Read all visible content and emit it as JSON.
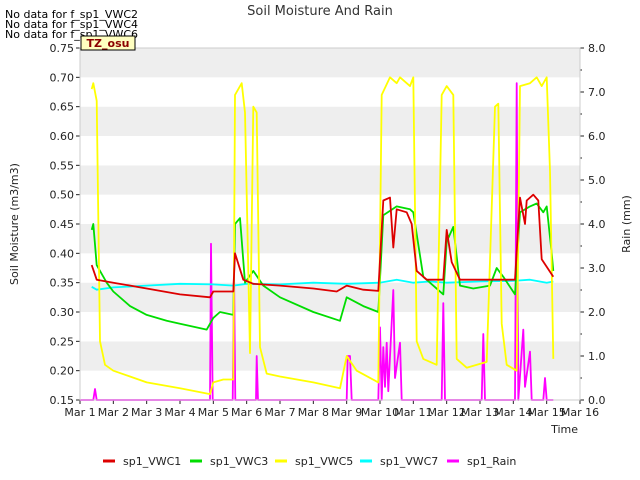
{
  "chart_data": {
    "type": "line",
    "title": "Soil Moisture And Rain",
    "xlabel": "Time",
    "ylabel": "Soil Moisture (m3/m3)",
    "y2label": "Rain (mm)",
    "x_ticks": [
      "Mar 1",
      "Mar 2",
      "Mar 3",
      "Mar 4",
      "Mar 5",
      "Mar 6",
      "Mar 7",
      "Mar 8",
      "Mar 9",
      "Mar 10",
      "Mar 11",
      "Mar 12",
      "Mar 13",
      "Mar 14",
      "Mar 15",
      "Mar 16"
    ],
    "xlim": [
      1,
      16
    ],
    "ylim": [
      0.15,
      0.75
    ],
    "y_ticks": [
      "0.15",
      "0.20",
      "0.25",
      "0.30",
      "0.35",
      "0.40",
      "0.45",
      "0.50",
      "0.55",
      "0.60",
      "0.65",
      "0.70",
      "0.75"
    ],
    "y2lim": [
      0,
      8
    ],
    "y2_ticks": [
      "0.0",
      "1.0",
      "2.0",
      "3.0",
      "4.0",
      "5.0",
      "6.0",
      "7.0",
      "8.0"
    ],
    "no_data_notes": [
      "No data for f_sp1_VWC2",
      "No data for f_sp1_VWC4",
      "No data for f_sp1_VWC6"
    ],
    "site_label": "TZ_osu",
    "legend_position": "bottom",
    "grid": "horizontal bands",
    "series": [
      {
        "name": "sp1_VWC1",
        "color": "#dd0000",
        "axis": "left",
        "points": [
          [
            1.35,
            0.38
          ],
          [
            1.5,
            0.355
          ],
          [
            2,
            0.35
          ],
          [
            3,
            0.34
          ],
          [
            4,
            0.33
          ],
          [
            4.9,
            0.325
          ],
          [
            5,
            0.335
          ],
          [
            5.6,
            0.335
          ],
          [
            5.65,
            0.4
          ],
          [
            5.9,
            0.355
          ],
          [
            6.2,
            0.348
          ],
          [
            7,
            0.345
          ],
          [
            8,
            0.34
          ],
          [
            8.7,
            0.335
          ],
          [
            9.0,
            0.345
          ],
          [
            9.5,
            0.338
          ],
          [
            9.95,
            0.336
          ],
          [
            10.1,
            0.49
          ],
          [
            10.3,
            0.495
          ],
          [
            10.4,
            0.41
          ],
          [
            10.5,
            0.475
          ],
          [
            10.8,
            0.47
          ],
          [
            10.95,
            0.45
          ],
          [
            11.1,
            0.37
          ],
          [
            11.4,
            0.355
          ],
          [
            11.9,
            0.355
          ],
          [
            12.0,
            0.44
          ],
          [
            12.15,
            0.385
          ],
          [
            12.4,
            0.355
          ],
          [
            13.0,
            0.355
          ],
          [
            13.5,
            0.355
          ],
          [
            14.05,
            0.355
          ],
          [
            14.2,
            0.495
          ],
          [
            14.35,
            0.45
          ],
          [
            14.4,
            0.49
          ],
          [
            14.6,
            0.5
          ],
          [
            14.75,
            0.49
          ],
          [
            14.85,
            0.39
          ],
          [
            15.2,
            0.36
          ]
        ]
      },
      {
        "name": "sp1_VWC3",
        "color": "#00dd00",
        "axis": "left",
        "points": [
          [
            1.35,
            0.44
          ],
          [
            1.4,
            0.45
          ],
          [
            1.5,
            0.38
          ],
          [
            1.8,
            0.35
          ],
          [
            2,
            0.335
          ],
          [
            2.5,
            0.31
          ],
          [
            3,
            0.295
          ],
          [
            3.6,
            0.285
          ],
          [
            4,
            0.28
          ],
          [
            4.8,
            0.27
          ],
          [
            5.0,
            0.29
          ],
          [
            5.2,
            0.3
          ],
          [
            5.6,
            0.295
          ],
          [
            5.65,
            0.45
          ],
          [
            5.8,
            0.46
          ],
          [
            5.95,
            0.35
          ],
          [
            6.2,
            0.37
          ],
          [
            6.5,
            0.345
          ],
          [
            7,
            0.325
          ],
          [
            8,
            0.3
          ],
          [
            8.8,
            0.285
          ],
          [
            9.0,
            0.325
          ],
          [
            9.5,
            0.31
          ],
          [
            9.95,
            0.3
          ],
          [
            10.1,
            0.465
          ],
          [
            10.5,
            0.48
          ],
          [
            10.9,
            0.475
          ],
          [
            11.0,
            0.47
          ],
          [
            11.3,
            0.36
          ],
          [
            11.9,
            0.33
          ],
          [
            12.0,
            0.42
          ],
          [
            12.2,
            0.445
          ],
          [
            12.4,
            0.345
          ],
          [
            12.8,
            0.34
          ],
          [
            13.3,
            0.345
          ],
          [
            13.5,
            0.375
          ],
          [
            13.7,
            0.36
          ],
          [
            14.05,
            0.33
          ],
          [
            14.2,
            0.47
          ],
          [
            14.5,
            0.48
          ],
          [
            14.7,
            0.485
          ],
          [
            14.9,
            0.47
          ],
          [
            15.0,
            0.48
          ],
          [
            15.15,
            0.4
          ],
          [
            15.2,
            0.37
          ]
        ]
      },
      {
        "name": "sp1_VWC5",
        "color": "#ffff00",
        "axis": "left",
        "points": [
          [
            1.35,
            0.68
          ],
          [
            1.4,
            0.69
          ],
          [
            1.5,
            0.66
          ],
          [
            1.6,
            0.25
          ],
          [
            1.75,
            0.21
          ],
          [
            2,
            0.2
          ],
          [
            2.5,
            0.19
          ],
          [
            3,
            0.18
          ],
          [
            4,
            0.17
          ],
          [
            4.9,
            0.16
          ],
          [
            5.0,
            0.18
          ],
          [
            5.3,
            0.185
          ],
          [
            5.6,
            0.185
          ],
          [
            5.65,
            0.67
          ],
          [
            5.85,
            0.69
          ],
          [
            5.95,
            0.64
          ],
          [
            6.1,
            0.23
          ],
          [
            6.2,
            0.65
          ],
          [
            6.3,
            0.64
          ],
          [
            6.4,
            0.24
          ],
          [
            6.6,
            0.195
          ],
          [
            7,
            0.19
          ],
          [
            8,
            0.18
          ],
          [
            8.8,
            0.17
          ],
          [
            9.0,
            0.225
          ],
          [
            9.3,
            0.2
          ],
          [
            9.95,
            0.18
          ],
          [
            10.05,
            0.67
          ],
          [
            10.3,
            0.7
          ],
          [
            10.5,
            0.69
          ],
          [
            10.6,
            0.7
          ],
          [
            10.9,
            0.685
          ],
          [
            11.0,
            0.7
          ],
          [
            11.1,
            0.25
          ],
          [
            11.3,
            0.22
          ],
          [
            11.7,
            0.21
          ],
          [
            11.85,
            0.67
          ],
          [
            12.0,
            0.685
          ],
          [
            12.2,
            0.67
          ],
          [
            12.3,
            0.22
          ],
          [
            12.6,
            0.205
          ],
          [
            13.2,
            0.215
          ],
          [
            13.45,
            0.65
          ],
          [
            13.55,
            0.655
          ],
          [
            13.65,
            0.28
          ],
          [
            13.8,
            0.21
          ],
          [
            14.1,
            0.2
          ],
          [
            14.2,
            0.685
          ],
          [
            14.5,
            0.69
          ],
          [
            14.7,
            0.7
          ],
          [
            14.85,
            0.685
          ],
          [
            15.0,
            0.7
          ],
          [
            15.1,
            0.54
          ],
          [
            15.2,
            0.22
          ]
        ]
      },
      {
        "name": "sp1_VWC7",
        "color": "#00ffff",
        "axis": "left",
        "points": [
          [
            1.35,
            0.343
          ],
          [
            1.5,
            0.338
          ],
          [
            2,
            0.342
          ],
          [
            3,
            0.345
          ],
          [
            4,
            0.348
          ],
          [
            5,
            0.347
          ],
          [
            5.6,
            0.345
          ],
          [
            6,
            0.348
          ],
          [
            7,
            0.347
          ],
          [
            8,
            0.35
          ],
          [
            9,
            0.348
          ],
          [
            10,
            0.35
          ],
          [
            10.5,
            0.355
          ],
          [
            11,
            0.35
          ],
          [
            11.5,
            0.352
          ],
          [
            12,
            0.35
          ],
          [
            13,
            0.352
          ],
          [
            14,
            0.353
          ],
          [
            14.5,
            0.355
          ],
          [
            15,
            0.35
          ],
          [
            15.2,
            0.352
          ]
        ]
      },
      {
        "name": "sp1_Rain",
        "color": "#ff00ff",
        "axis": "right",
        "points": [
          [
            1,
            0
          ],
          [
            1.4,
            0
          ],
          [
            1.45,
            0.25
          ],
          [
            1.5,
            0
          ],
          [
            4.9,
            0
          ],
          [
            4.93,
            3.55
          ],
          [
            4.98,
            0
          ],
          [
            5.58,
            0
          ],
          [
            5.62,
            3.0
          ],
          [
            5.66,
            0
          ],
          [
            6.28,
            0
          ],
          [
            6.3,
            1.0
          ],
          [
            6.34,
            0
          ],
          [
            9.0,
            0
          ],
          [
            9.03,
            1.0
          ],
          [
            9.1,
            1.0
          ],
          [
            9.15,
            0
          ],
          [
            9.95,
            0
          ],
          [
            10.0,
            1.65
          ],
          [
            10.05,
            0
          ],
          [
            10.1,
            1.2
          ],
          [
            10.15,
            0.3
          ],
          [
            10.2,
            1.3
          ],
          [
            10.25,
            0.2
          ],
          [
            10.4,
            2.5
          ],
          [
            10.45,
            0.5
          ],
          [
            10.6,
            1.3
          ],
          [
            10.65,
            0
          ],
          [
            11.85,
            0
          ],
          [
            11.9,
            2.2
          ],
          [
            11.95,
            0
          ],
          [
            13.05,
            0
          ],
          [
            13.1,
            1.5
          ],
          [
            13.15,
            0
          ],
          [
            14.05,
            0
          ],
          [
            14.1,
            7.2
          ],
          [
            14.15,
            0
          ],
          [
            14.3,
            1.6
          ],
          [
            14.35,
            0.3
          ],
          [
            14.5,
            1.1
          ],
          [
            14.55,
            0
          ],
          [
            14.9,
            0
          ],
          [
            14.95,
            0.5
          ],
          [
            15.0,
            0
          ],
          [
            15.2,
            0
          ]
        ]
      }
    ]
  }
}
